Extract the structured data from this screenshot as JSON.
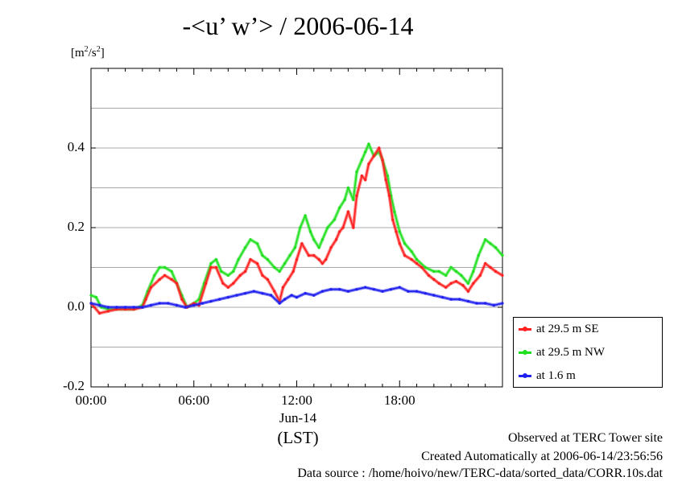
{
  "chart_data": {
    "type": "line",
    "title": "-<u’ w’> / 2006-06-14",
    "ylabel_unit": "[m²/s²]",
    "xlabel": "(LST)",
    "date_label": "Jun-14",
    "x_unit": "hours (LST)",
    "xlim": [
      0,
      24
    ],
    "ylim": [
      -0.2,
      0.6
    ],
    "x_ticks": [
      {
        "value": 0,
        "label": "00:00"
      },
      {
        "value": 6,
        "label": "06:00"
      },
      {
        "value": 12,
        "label": "12:00"
      },
      {
        "value": 18,
        "label": "18:00"
      }
    ],
    "y_ticks": [
      {
        "value": -0.2,
        "label": "-0.2"
      },
      {
        "value": 0.0,
        "label": "0.0"
      },
      {
        "value": 0.2,
        "label": "0.2"
      },
      {
        "value": 0.4,
        "label": "0.4"
      }
    ],
    "grid": "horizontal",
    "legend_position": "outside-right-bottom",
    "series": [
      {
        "name": "at 29.5 m SE",
        "color": "#ff2020",
        "points": [
          [
            0,
            0.01
          ],
          [
            0.5,
            -0.015
          ],
          [
            1,
            -0.01
          ],
          [
            1.5,
            -0.005
          ],
          [
            2,
            -0.005
          ],
          [
            2.5,
            -0.005
          ],
          [
            3,
            0.0
          ],
          [
            3.2,
            0.02
          ],
          [
            3.5,
            0.05
          ],
          [
            4,
            0.07
          ],
          [
            4.3,
            0.08
          ],
          [
            4.7,
            0.07
          ],
          [
            5,
            0.06
          ],
          [
            5.3,
            0.02
          ],
          [
            5.6,
            0.0
          ],
          [
            6,
            0.01
          ],
          [
            6.3,
            0.005
          ],
          [
            6.7,
            0.06
          ],
          [
            7,
            0.1
          ],
          [
            7.3,
            0.1
          ],
          [
            7.7,
            0.06
          ],
          [
            8,
            0.05
          ],
          [
            8.3,
            0.06
          ],
          [
            8.7,
            0.08
          ],
          [
            9,
            0.09
          ],
          [
            9.3,
            0.12
          ],
          [
            9.7,
            0.11
          ],
          [
            10,
            0.08
          ],
          [
            10.3,
            0.07
          ],
          [
            10.7,
            0.04
          ],
          [
            11,
            0.015
          ],
          [
            11.2,
            0.05
          ],
          [
            11.5,
            0.07
          ],
          [
            11.8,
            0.09
          ],
          [
            12,
            0.12
          ],
          [
            12.3,
            0.16
          ],
          [
            12.7,
            0.13
          ],
          [
            13,
            0.13
          ],
          [
            13.3,
            0.12
          ],
          [
            13.5,
            0.11
          ],
          [
            13.7,
            0.12
          ],
          [
            14,
            0.15
          ],
          [
            14.3,
            0.17
          ],
          [
            14.5,
            0.19
          ],
          [
            14.7,
            0.2
          ],
          [
            15,
            0.24
          ],
          [
            15.3,
            0.2
          ],
          [
            15.5,
            0.28
          ],
          [
            15.8,
            0.33
          ],
          [
            16,
            0.32
          ],
          [
            16.2,
            0.36
          ],
          [
            16.5,
            0.38
          ],
          [
            16.8,
            0.4
          ],
          [
            17,
            0.37
          ],
          [
            17.2,
            0.32
          ],
          [
            17.4,
            0.28
          ],
          [
            17.6,
            0.22
          ],
          [
            17.8,
            0.19
          ],
          [
            18,
            0.16
          ],
          [
            18.3,
            0.13
          ],
          [
            18.7,
            0.12
          ],
          [
            19,
            0.11
          ],
          [
            19.3,
            0.1
          ],
          [
            19.7,
            0.08
          ],
          [
            20,
            0.07
          ],
          [
            20.3,
            0.06
          ],
          [
            20.7,
            0.05
          ],
          [
            21,
            0.06
          ],
          [
            21.3,
            0.065
          ],
          [
            21.7,
            0.055
          ],
          [
            22,
            0.04
          ],
          [
            22.3,
            0.06
          ],
          [
            22.7,
            0.08
          ],
          [
            23,
            0.11
          ],
          [
            23.3,
            0.1
          ],
          [
            23.6,
            0.09
          ],
          [
            24,
            0.08
          ]
        ]
      },
      {
        "name": "at 29.5 m NW",
        "color": "#20e020",
        "points": [
          [
            0,
            0.03
          ],
          [
            0.3,
            0.025
          ],
          [
            0.6,
            0.0
          ],
          [
            1,
            -0.005
          ],
          [
            1.5,
            -0.005
          ],
          [
            2,
            -0.005
          ],
          [
            2.5,
            -0.005
          ],
          [
            3,
            0.005
          ],
          [
            3.3,
            0.04
          ],
          [
            3.7,
            0.08
          ],
          [
            4,
            0.1
          ],
          [
            4.3,
            0.1
          ],
          [
            4.7,
            0.09
          ],
          [
            5,
            0.06
          ],
          [
            5.3,
            0.03
          ],
          [
            5.6,
            0.0
          ],
          [
            6,
            0.01
          ],
          [
            6.3,
            0.02
          ],
          [
            6.6,
            0.06
          ],
          [
            7,
            0.11
          ],
          [
            7.3,
            0.12
          ],
          [
            7.6,
            0.09
          ],
          [
            8,
            0.08
          ],
          [
            8.3,
            0.09
          ],
          [
            8.6,
            0.12
          ],
          [
            9,
            0.15
          ],
          [
            9.3,
            0.17
          ],
          [
            9.7,
            0.16
          ],
          [
            10,
            0.13
          ],
          [
            10.3,
            0.12
          ],
          [
            10.7,
            0.1
          ],
          [
            11,
            0.09
          ],
          [
            11.3,
            0.11
          ],
          [
            11.6,
            0.13
          ],
          [
            11.9,
            0.15
          ],
          [
            12.2,
            0.2
          ],
          [
            12.5,
            0.23
          ],
          [
            12.8,
            0.19
          ],
          [
            13,
            0.17
          ],
          [
            13.3,
            0.15
          ],
          [
            13.5,
            0.17
          ],
          [
            13.8,
            0.2
          ],
          [
            14.2,
            0.22
          ],
          [
            14.5,
            0.25
          ],
          [
            14.8,
            0.27
          ],
          [
            15,
            0.3
          ],
          [
            15.3,
            0.27
          ],
          [
            15.5,
            0.34
          ],
          [
            15.8,
            0.37
          ],
          [
            16,
            0.39
          ],
          [
            16.2,
            0.41
          ],
          [
            16.5,
            0.38
          ],
          [
            16.8,
            0.39
          ],
          [
            17,
            0.37
          ],
          [
            17.3,
            0.33
          ],
          [
            17.5,
            0.28
          ],
          [
            17.7,
            0.24
          ],
          [
            18,
            0.19
          ],
          [
            18.3,
            0.16
          ],
          [
            18.7,
            0.14
          ],
          [
            19,
            0.12
          ],
          [
            19.5,
            0.1
          ],
          [
            20,
            0.09
          ],
          [
            20.3,
            0.09
          ],
          [
            20.7,
            0.08
          ],
          [
            21,
            0.1
          ],
          [
            21.3,
            0.09
          ],
          [
            21.6,
            0.08
          ],
          [
            22,
            0.06
          ],
          [
            22.3,
            0.09
          ],
          [
            22.6,
            0.13
          ],
          [
            23,
            0.17
          ],
          [
            23.3,
            0.16
          ],
          [
            23.6,
            0.15
          ],
          [
            24,
            0.13
          ]
        ]
      },
      {
        "name": "at 1.6 m",
        "color": "#2020ee",
        "points": [
          [
            0,
            0.01
          ],
          [
            0.5,
            0.005
          ],
          [
            1,
            0.0
          ],
          [
            1.5,
            0.0
          ],
          [
            2,
            0.0
          ],
          [
            2.5,
            0.0
          ],
          [
            3,
            0.0
          ],
          [
            3.5,
            0.005
          ],
          [
            4,
            0.01
          ],
          [
            4.5,
            0.01
          ],
          [
            5,
            0.005
          ],
          [
            5.5,
            0.0
          ],
          [
            6,
            0.005
          ],
          [
            6.5,
            0.01
          ],
          [
            7,
            0.015
          ],
          [
            7.5,
            0.02
          ],
          [
            8,
            0.025
          ],
          [
            8.5,
            0.03
          ],
          [
            9,
            0.035
          ],
          [
            9.5,
            0.04
          ],
          [
            10,
            0.035
          ],
          [
            10.5,
            0.03
          ],
          [
            11,
            0.01
          ],
          [
            11.3,
            0.02
          ],
          [
            11.7,
            0.03
          ],
          [
            12,
            0.025
          ],
          [
            12.5,
            0.035
          ],
          [
            13,
            0.03
          ],
          [
            13.5,
            0.04
          ],
          [
            14,
            0.045
          ],
          [
            14.5,
            0.045
          ],
          [
            15,
            0.04
          ],
          [
            15.5,
            0.045
          ],
          [
            16,
            0.05
          ],
          [
            16.5,
            0.045
          ],
          [
            17,
            0.04
          ],
          [
            17.5,
            0.045
          ],
          [
            18,
            0.05
          ],
          [
            18.5,
            0.04
          ],
          [
            19,
            0.04
          ],
          [
            19.5,
            0.035
          ],
          [
            20,
            0.03
          ],
          [
            20.5,
            0.025
          ],
          [
            21,
            0.02
          ],
          [
            21.5,
            0.02
          ],
          [
            22,
            0.015
          ],
          [
            22.5,
            0.01
          ],
          [
            23,
            0.01
          ],
          [
            23.5,
            0.005
          ],
          [
            24,
            0.01
          ]
        ]
      }
    ]
  },
  "footer": {
    "line1": "Observed at TERC Tower site",
    "line2": "Created Automatically at 2006-06-14/23:56:56",
    "line3": "Data source : /home/hoivo/new/TERC-data/sorted_data/CORR.10s.dat"
  }
}
